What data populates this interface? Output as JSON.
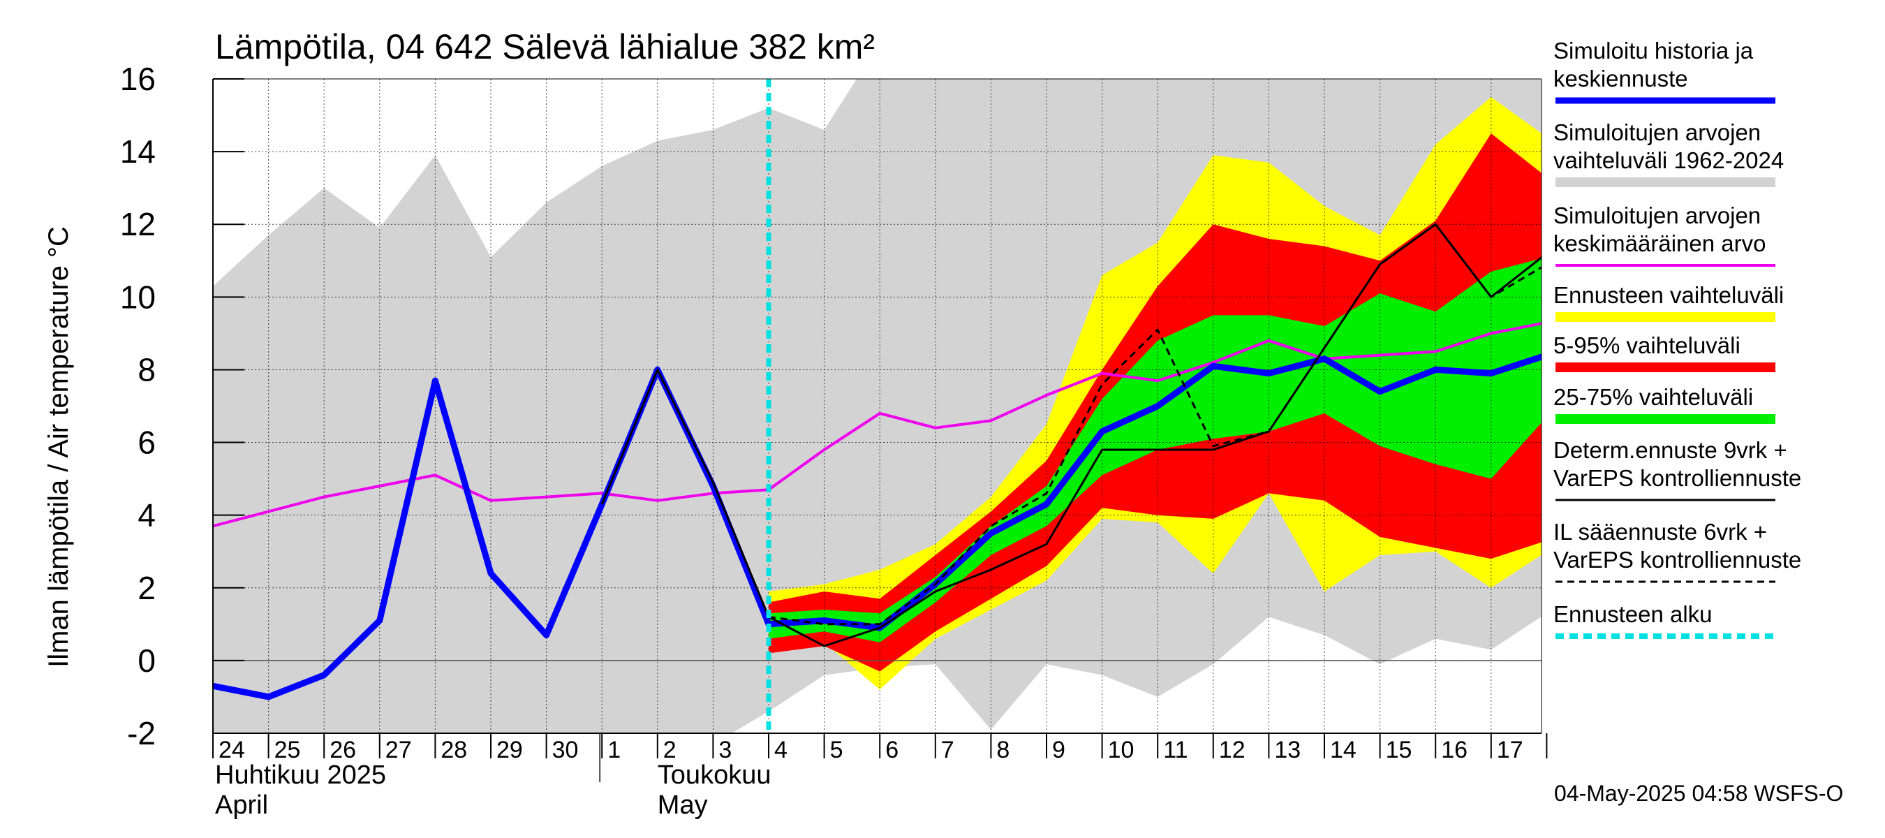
{
  "chart_data": {
    "type": "area",
    "title": "Lämpötila, 04 642 Sälevä lähialue 382 km²",
    "ylabel": "Ilman lämpötila / Air temperature   °C",
    "ylim": [
      -2,
      16
    ],
    "yticks": [
      -2,
      0,
      2,
      4,
      6,
      8,
      10,
      12,
      14,
      16
    ],
    "grid": true,
    "legend_position": "right",
    "x_day_labels": [
      "24",
      "25",
      "26",
      "27",
      "28",
      "29",
      "30",
      "1",
      "2",
      "3",
      "4",
      "5",
      "6",
      "7",
      "8",
      "9",
      "10",
      "11",
      "12",
      "13",
      "14",
      "15",
      "16",
      "17"
    ],
    "x_start_date": "2025-04-24",
    "month_labels": [
      {
        "line1": "Huhtikuu  2025",
        "line2": "April"
      },
      {
        "line1": "Toukokuu",
        "line2": "May"
      }
    ],
    "forecast_start_day": "2025-05-04",
    "series": [
      {
        "name": "Simuloitujen arvojen vaihteluväli 1962-2024",
        "kind": "band",
        "color": "#d3d3d3",
        "x": [
          "2025-04-24",
          "2025-04-25",
          "2025-04-26",
          "2025-04-27",
          "2025-04-28",
          "2025-04-29",
          "2025-04-30",
          "2025-05-01",
          "2025-05-02",
          "2025-05-03",
          "2025-05-04",
          "2025-05-05",
          "2025-05-06",
          "2025-05-07",
          "2025-05-08",
          "2025-05-09",
          "2025-05-10",
          "2025-05-11",
          "2025-05-12",
          "2025-05-13",
          "2025-05-14",
          "2025-05-15",
          "2025-05-16",
          "2025-05-17",
          "2025-05-18"
        ],
        "upper": [
          10.3,
          11.7,
          13.0,
          11.9,
          13.9,
          11.1,
          12.6,
          13.6,
          14.3,
          14.6,
          15.2,
          14.6,
          17,
          17,
          17,
          17,
          17,
          17,
          17,
          17,
          17,
          17,
          17,
          17,
          17
        ],
        "lower": [
          -3,
          -3,
          -3,
          -3,
          -3,
          -3,
          -3,
          -3,
          -3,
          -2.3,
          -1.4,
          -0.4,
          -0.2,
          -0.1,
          -1.9,
          -0.1,
          -0.4,
          -1.0,
          -0.1,
          1.2,
          0.7,
          -0.1,
          0.6,
          0.3,
          1.3
        ]
      },
      {
        "name": "Ennusteen vaihteluväli",
        "kind": "band",
        "color": "#ffff00",
        "x": [
          "2025-05-04",
          "2025-05-05",
          "2025-05-06",
          "2025-05-07",
          "2025-05-08",
          "2025-05-09",
          "2025-05-10",
          "2025-05-11",
          "2025-05-12",
          "2025-05-13",
          "2025-05-14",
          "2025-05-15",
          "2025-05-16",
          "2025-05-17",
          "2025-05-18"
        ],
        "upper": [
          1.9,
          2.1,
          2.5,
          3.2,
          4.5,
          6.5,
          10.6,
          11.5,
          13.9,
          13.7,
          12.5,
          11.7,
          14.2,
          15.5,
          14.4
        ],
        "lower": [
          0.4,
          0.5,
          -0.8,
          0.6,
          1.4,
          2.2,
          3.9,
          3.8,
          2.4,
          4.6,
          1.9,
          2.9,
          3.0,
          2.0,
          3.0
        ]
      },
      {
        "name": "5-95% vaihteluväli",
        "kind": "band",
        "color": "#ff0000",
        "x": [
          "2025-05-04",
          "2025-05-05",
          "2025-05-06",
          "2025-05-07",
          "2025-05-08",
          "2025-05-09",
          "2025-05-10",
          "2025-05-11",
          "2025-05-12",
          "2025-05-13",
          "2025-05-14",
          "2025-05-15",
          "2025-05-16",
          "2025-05-17",
          "2025-05-18"
        ],
        "upper": [
          1.6,
          1.9,
          1.7,
          2.9,
          4.1,
          5.5,
          8.0,
          10.3,
          12.0,
          11.6,
          11.4,
          11.0,
          12.1,
          14.5,
          13.3
        ],
        "lower": [
          0.2,
          0.4,
          -0.3,
          0.8,
          1.7,
          2.6,
          4.2,
          4.0,
          3.9,
          4.6,
          4.4,
          3.4,
          3.1,
          2.8,
          3.3
        ]
      },
      {
        "name": "25-75% vaihteluväli",
        "kind": "band",
        "color": "#00ee00",
        "x": [
          "2025-05-04",
          "2025-05-05",
          "2025-05-06",
          "2025-05-07",
          "2025-05-08",
          "2025-05-09",
          "2025-05-10",
          "2025-05-11",
          "2025-05-12",
          "2025-05-13",
          "2025-05-14",
          "2025-05-15",
          "2025-05-16",
          "2025-05-17",
          "2025-05-18"
        ],
        "upper": [
          1.3,
          1.4,
          1.3,
          2.3,
          3.7,
          4.8,
          7.2,
          8.8,
          9.5,
          9.5,
          9.2,
          10.1,
          9.6,
          10.7,
          11.1
        ],
        "lower": [
          0.6,
          0.8,
          0.5,
          1.6,
          2.9,
          3.7,
          5.1,
          5.8,
          6.1,
          6.3,
          6.8,
          5.9,
          5.4,
          5.0,
          6.7
        ]
      },
      {
        "name": "Simuloitujen arvojen keskimääräinen arvo",
        "kind": "line",
        "color": "#ee00ee",
        "width": 4,
        "x": [
          "2025-04-24",
          "2025-04-25",
          "2025-04-26",
          "2025-04-27",
          "2025-04-28",
          "2025-04-29",
          "2025-04-30",
          "2025-05-01",
          "2025-05-02",
          "2025-05-03",
          "2025-05-04",
          "2025-05-05",
          "2025-05-06",
          "2025-05-07",
          "2025-05-08",
          "2025-05-09",
          "2025-05-10",
          "2025-05-11",
          "2025-05-12",
          "2025-05-13",
          "2025-05-14",
          "2025-05-15",
          "2025-05-16",
          "2025-05-17",
          "2025-05-18"
        ],
        "y": [
          3.7,
          4.1,
          4.5,
          4.8,
          5.1,
          4.4,
          4.5,
          4.6,
          4.4,
          4.6,
          4.7,
          5.8,
          6.8,
          6.4,
          6.6,
          7.3,
          7.9,
          7.7,
          8.2,
          8.8,
          8.3,
          8.4,
          8.5,
          9.0,
          9.3
        ]
      },
      {
        "name": "Simuloitu historia ja keskiennuste",
        "kind": "line",
        "color": "#0000ff",
        "width": 9,
        "x": [
          "2025-04-24",
          "2025-04-25",
          "2025-04-26",
          "2025-04-27",
          "2025-04-28",
          "2025-04-29",
          "2025-04-30",
          "2025-05-01",
          "2025-05-02",
          "2025-05-03",
          "2025-05-04",
          "2025-05-05",
          "2025-05-06",
          "2025-05-07",
          "2025-05-08",
          "2025-05-09",
          "2025-05-10",
          "2025-05-11",
          "2025-05-12",
          "2025-05-13",
          "2025-05-14",
          "2025-05-15",
          "2025-05-16",
          "2025-05-17",
          "2025-05-18"
        ],
        "y": [
          -0.7,
          -1.0,
          -0.4,
          1.1,
          7.7,
          2.4,
          0.7,
          4.3,
          8.0,
          4.8,
          1.0,
          1.1,
          0.9,
          2.1,
          3.5,
          4.3,
          6.3,
          7.0,
          8.1,
          7.9,
          8.3,
          7.4,
          8.0,
          7.9,
          8.4
        ]
      },
      {
        "name": "Determ.ennuste 9vrk + VarEPS kontrolliennuste",
        "kind": "line",
        "color": "#000000",
        "width": 3,
        "x": [
          "2025-05-01",
          "2025-05-02",
          "2025-05-03",
          "2025-05-04",
          "2025-05-05",
          "2025-05-06",
          "2025-05-07",
          "2025-05-08",
          "2025-05-09",
          "2025-05-10",
          "2025-05-11",
          "2025-05-12",
          "2025-05-13",
          "2025-05-14",
          "2025-05-15",
          "2025-05-16",
          "2025-05-17",
          "2025-05-18"
        ],
        "y": [
          4.3,
          8.0,
          4.9,
          1.2,
          0.4,
          0.9,
          1.9,
          2.5,
          3.2,
          5.8,
          5.8,
          5.8,
          6.3,
          8.6,
          10.9,
          12.0,
          10.0,
          11.2
        ]
      },
      {
        "name": "IL sääennuste 6vrk + VarEPS kontrolliennuste",
        "kind": "line",
        "color": "#000000",
        "width": 3,
        "dash": "10,7",
        "x": [
          "2025-05-04",
          "2025-05-05",
          "2025-05-06",
          "2025-05-07",
          "2025-05-08",
          "2025-05-09",
          "2025-05-10",
          "2025-05-11",
          "2025-05-12",
          "2025-05-13",
          "2025-05-14",
          "2025-05-15",
          "2025-05-16",
          "2025-05-17",
          "2025-05-18"
        ],
        "y": [
          1.2,
          1.0,
          1.0,
          2.1,
          3.7,
          4.6,
          7.6,
          9.1,
          5.9,
          6.3,
          8.6,
          10.9,
          12.0,
          10.0,
          10.9
        ]
      }
    ]
  },
  "legend": [
    {
      "lines": [
        "Simuloitu historia ja",
        "keskiennuste"
      ],
      "color": "#0000ff",
      "style": "thick"
    },
    {
      "lines": [
        "Simuloitujen arvojen",
        "vaihteluväli 1962-2024"
      ],
      "color": "#d3d3d3",
      "style": "band"
    },
    {
      "lines": [
        "Simuloitujen arvojen",
        "keskimääräinen arvo"
      ],
      "color": "#ee00ee",
      "style": "thin"
    },
    {
      "lines": [
        "Ennusteen vaihteluväli"
      ],
      "color": "#ffff00",
      "style": "band"
    },
    {
      "lines": [
        "5-95% vaihteluväli"
      ],
      "color": "#ff0000",
      "style": "band"
    },
    {
      "lines": [
        "25-75% vaihteluväli"
      ],
      "color": "#00ee00",
      "style": "band"
    },
    {
      "lines": [
        "Determ.ennuste 9vrk +",
        "VarEPS kontrolliennuste"
      ],
      "color": "#000000",
      "style": "line"
    },
    {
      "lines": [
        "IL sääennuste 6vrk  +",
        "  VarEPS kontrolliennuste"
      ],
      "color": "#000000",
      "style": "dashed"
    },
    {
      "lines": [
        "Ennusteen alku"
      ],
      "color": "#00e0e0",
      "style": "cyan-dashed"
    }
  ],
  "footer": "04-May-2025 04:58 WSFS-O"
}
